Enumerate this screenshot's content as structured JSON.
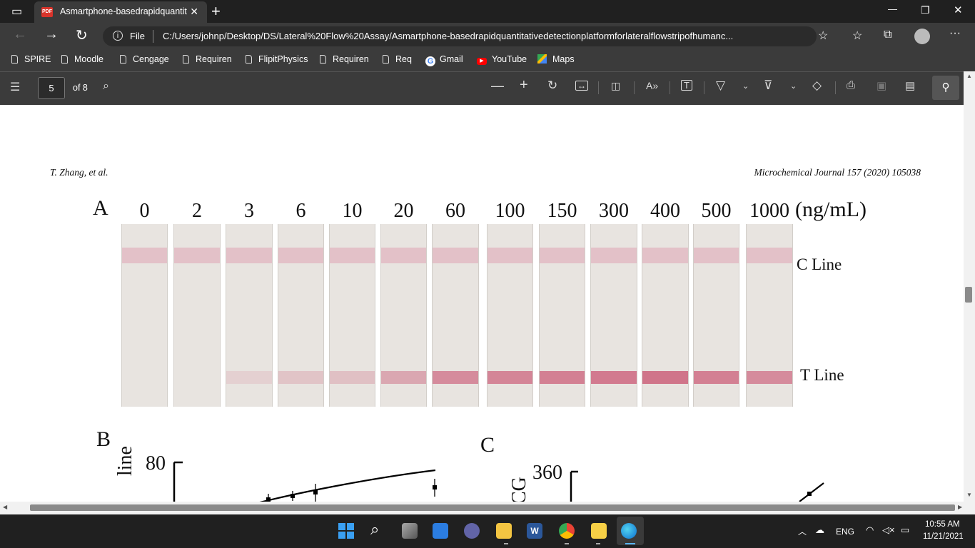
{
  "browser": {
    "tab_title": "Asmartphone-basedrapidquantit",
    "tab_close": "✕",
    "new_tab": "+",
    "window_controls": [
      "—",
      "❐",
      "✕"
    ],
    "address_scheme_label": "File",
    "url": "C:/Users/johnp/Desktop/DS/Lateral%20Flow%20Assay/Asmartphone-basedrapidquantitativedetectionplatformforlateralflowstripofhumanc...",
    "bookmarks": [
      {
        "label": "SPIRE",
        "icon": "page-icon"
      },
      {
        "label": "Moodle",
        "icon": "page-icon"
      },
      {
        "label": "Cengage",
        "icon": "page-icon"
      },
      {
        "label": "Requiren",
        "icon": "page-icon"
      },
      {
        "label": "FlipitPhysics",
        "icon": "page-icon"
      },
      {
        "label": "Requiren",
        "icon": "page-icon"
      },
      {
        "label": "Req",
        "icon": "page-icon"
      },
      {
        "label": "Gmail",
        "icon": "google-icon"
      },
      {
        "label": "YouTube",
        "icon": "youtube-icon"
      },
      {
        "label": "Maps",
        "icon": "maps-icon"
      }
    ]
  },
  "pdf_toolbar": {
    "page_number": "5",
    "page_total": "of 8"
  },
  "document": {
    "header_left": "T. Zhang, et al.",
    "header_right": "Microchemical Journal 157 (2020) 105038",
    "panel_a_label": "A",
    "concentrations": [
      "0",
      "2",
      "3",
      "6",
      "10",
      "20",
      "60",
      "100",
      "150",
      "300",
      "400",
      "500",
      "1000"
    ],
    "unit": "(ng/mL)",
    "c_line_label": "C Line",
    "t_line_label": "T Line",
    "t_line_intensity": [
      0,
      0,
      0.18,
      0.28,
      0.32,
      0.55,
      0.8,
      0.85,
      0.9,
      0.95,
      1.0,
      0.9,
      0.8
    ],
    "panel_b_label": "B",
    "panel_b_ylabel_fragment": "line",
    "panel_b_ytick": "80",
    "panel_c_label": "C",
    "panel_c_ylabel_fragment": "CG",
    "panel_c_ytick": "360"
  },
  "taskbar": {
    "language": "ENG",
    "time": "10:55 AM",
    "date": "11/21/2021"
  },
  "colors": {
    "chrome_dark": "#202020",
    "chrome_mid": "#3b3b3b",
    "c_band": "#e3c1c8",
    "t_band": "#c8506e",
    "strip": "#e8e4e0"
  }
}
